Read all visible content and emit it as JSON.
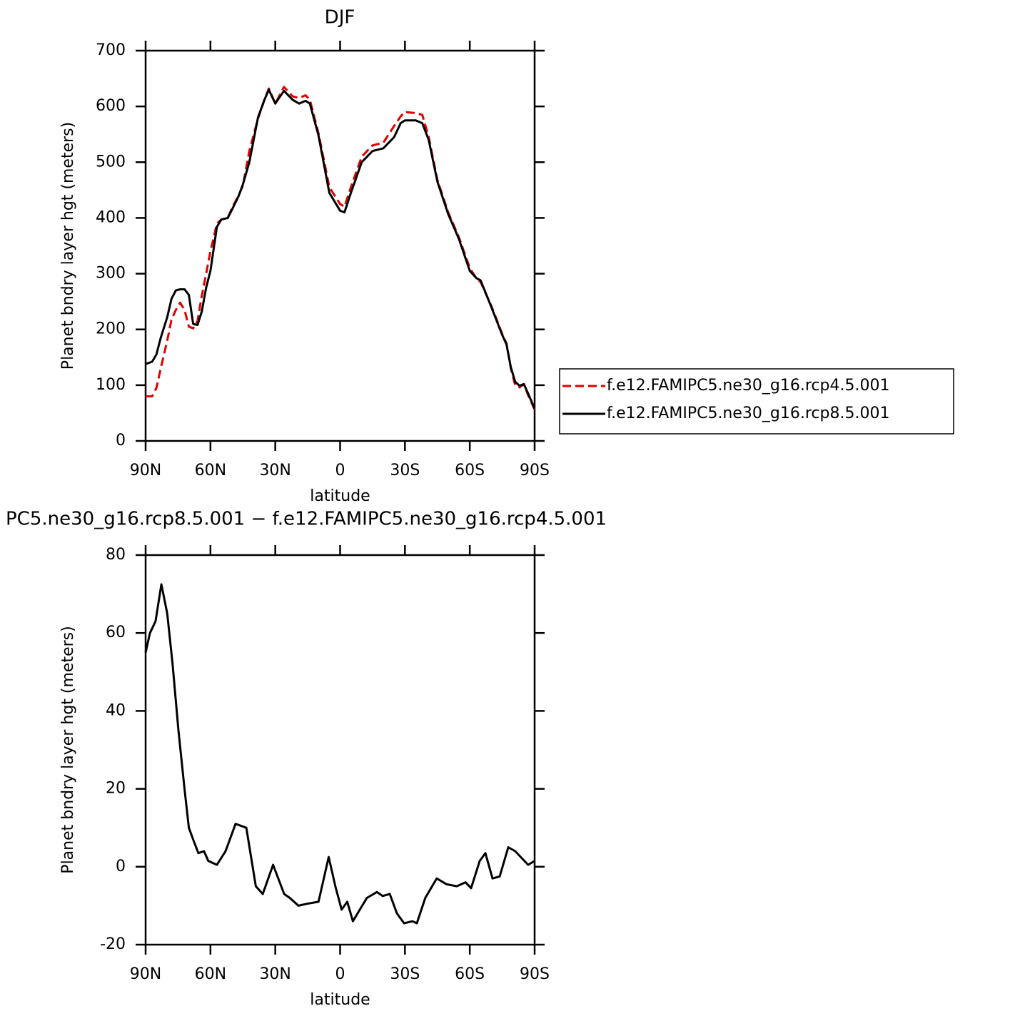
{
  "chart_data": [
    {
      "type": "line",
      "title": "DJF",
      "x_label": "latitude",
      "y_label": "Planet bndry layer hgt (meters)",
      "x": [
        90,
        87,
        85,
        83,
        80,
        78,
        76,
        74,
        72,
        70,
        68,
        66,
        64,
        62,
        60,
        57,
        55,
        52,
        50,
        47,
        45,
        42,
        38,
        35,
        33,
        30,
        26,
        22,
        19,
        16,
        14,
        10,
        5,
        0,
        -2,
        -5,
        -10,
        -15,
        -20,
        -25,
        -28,
        -30,
        -35,
        -38,
        -41,
        -45,
        -50,
        -55,
        -60,
        -63,
        -65,
        -70,
        -75,
        -77,
        -79,
        -81,
        -83,
        -85,
        -87,
        -90
      ],
      "series": [
        {
          "name": "f.e12.FAMIPC5.ne30_g16.rcp4.5.001",
          "color": "#e00000",
          "style": "dashed",
          "values": [
            80,
            80,
            95,
            130,
            180,
            218,
            235,
            248,
            235,
            205,
            202,
            215,
            260,
            300,
            340,
            390,
            397,
            400,
            418,
            440,
            458,
            520,
            578,
            612,
            632,
            605,
            635,
            618,
            615,
            620,
            612,
            552,
            455,
            425,
            420,
            455,
            510,
            530,
            535,
            565,
            582,
            590,
            588,
            585,
            545,
            468,
            410,
            365,
            310,
            292,
            285,
            242,
            192,
            175,
            130,
            100,
            96,
            102,
            82,
            56
          ]
        },
        {
          "name": "f.e12.FAMIPC5.ne30_g16.rcp8.5.001",
          "color": "#000000",
          "style": "solid",
          "values": [
            138,
            142,
            155,
            185,
            222,
            255,
            270,
            272,
            272,
            262,
            210,
            208,
            232,
            275,
            305,
            384,
            397,
            400,
            415,
            439,
            460,
            500,
            580,
            612,
            630,
            605,
            628,
            612,
            605,
            610,
            605,
            548,
            445,
            413,
            410,
            445,
            500,
            520,
            525,
            545,
            570,
            575,
            575,
            570,
            540,
            465,
            407,
            362,
            305,
            292,
            288,
            240,
            190,
            173,
            132,
            106,
            99,
            102,
            85,
            58
          ]
        }
      ],
      "xlim": [
        90,
        -90
      ],
      "xticks": [
        {
          "value": 90,
          "label": "90N"
        },
        {
          "value": 60,
          "label": "60N"
        },
        {
          "value": 30,
          "label": "30N"
        },
        0,
        {
          "value": -30,
          "label": "30S"
        },
        {
          "value": -60,
          "label": "60S"
        },
        {
          "value": -90,
          "label": "90S"
        }
      ],
      "ylim": [
        0,
        700
      ],
      "yticks": [
        0,
        100,
        200,
        300,
        400,
        500,
        600,
        700
      ],
      "legend": "right"
    },
    {
      "type": "line",
      "title": "PC5.ne30_g16.rcp8.5.001 − f.e12.FAMIPC5.ne30_g16.rcp4.5.001",
      "x_label": "latitude",
      "y_label": "Planet bndry layer hgt (meters)",
      "x": [
        90,
        88,
        85.4,
        82.7,
        80,
        77.5,
        74.8,
        72,
        70,
        68,
        65.6,
        63,
        61,
        57,
        53,
        48.4,
        43.4,
        39,
        35.8,
        31,
        25.9,
        23.3,
        19.3,
        15.3,
        10,
        5.3,
        2.2,
        -0.7,
        -3.3,
        -5.9,
        -9.1,
        -12.4,
        -17,
        -19.7,
        -23,
        -26.3,
        -29.6,
        -33.5,
        -35.5,
        -39.4,
        -44.7,
        -49.3,
        -54,
        -58,
        -60.6,
        -64.6,
        -67.2,
        -70.5,
        -73.8,
        -77.8,
        -81,
        -87,
        -90
      ],
      "values": [
        55,
        60,
        63,
        72.5,
        65,
        52,
        35,
        20,
        10,
        7,
        3.5,
        4,
        1.5,
        0.5,
        4,
        11,
        10,
        -5,
        -7,
        0.5,
        -7,
        -8,
        -10,
        -9.5,
        -9,
        2.5,
        -5,
        -11,
        -9,
        -14,
        -11,
        -8,
        -6.5,
        -7.5,
        -7,
        -12,
        -14.5,
        -14,
        -14.5,
        -8,
        -3,
        -4.5,
        -5,
        -4,
        -5.5,
        1.5,
        3.5,
        -3,
        -2.5,
        5,
        4,
        0.5,
        1.5
      ],
      "color": "#000000",
      "xlim": [
        90,
        -90
      ],
      "xticks": [
        {
          "value": 90,
          "label": "90N"
        },
        {
          "value": 60,
          "label": "60N"
        },
        {
          "value": 30,
          "label": "30N"
        },
        0,
        {
          "value": -30,
          "label": "30S"
        },
        {
          "value": -60,
          "label": "60S"
        },
        {
          "value": -90,
          "label": "90S"
        }
      ],
      "ylim": [
        -20,
        80
      ],
      "yticks": [
        -20,
        0,
        20,
        40,
        60,
        80
      ]
    }
  ]
}
